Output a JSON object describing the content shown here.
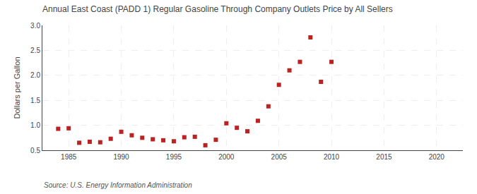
{
  "chart_data": {
    "type": "scatter",
    "title": "Annual East Coast (PADD 1) Regular Gasoline Through Company Outlets Price by All Sellers",
    "ylabel": "Dollars per Gallon",
    "annotations": [
      "Source: U.S. Energy Information Administration"
    ],
    "x": [
      1984,
      1985,
      1986,
      1987,
      1988,
      1989,
      1990,
      1991,
      1992,
      1993,
      1994,
      1995,
      1996,
      1997,
      1998,
      1999,
      2000,
      2001,
      2002,
      2003,
      2004,
      2005,
      2006,
      2007,
      2008,
      2009,
      2010
    ],
    "values": [
      0.93,
      0.94,
      0.65,
      0.67,
      0.66,
      0.73,
      0.87,
      0.8,
      0.75,
      0.72,
      0.7,
      0.68,
      0.76,
      0.77,
      0.6,
      0.71,
      1.04,
      0.95,
      0.88,
      1.09,
      1.38,
      1.81,
      2.1,
      2.27,
      2.76,
      1.87,
      2.27
    ],
    "color": "#bb2222",
    "marker": "square",
    "xlim": [
      1982.5,
      2022.5
    ],
    "ylim": [
      0.5,
      3.0
    ],
    "xticks": [
      1985,
      1990,
      1995,
      2000,
      2005,
      2010,
      2015,
      2020
    ],
    "yticks": [
      0.5,
      {
        "value": 1.0,
        "label": "1.0"
      },
      1.5,
      {
        "value": 2.0,
        "label": "2.0"
      },
      2.5,
      {
        "value": 3.0,
        "label": "3.0"
      }
    ],
    "grid": true
  }
}
